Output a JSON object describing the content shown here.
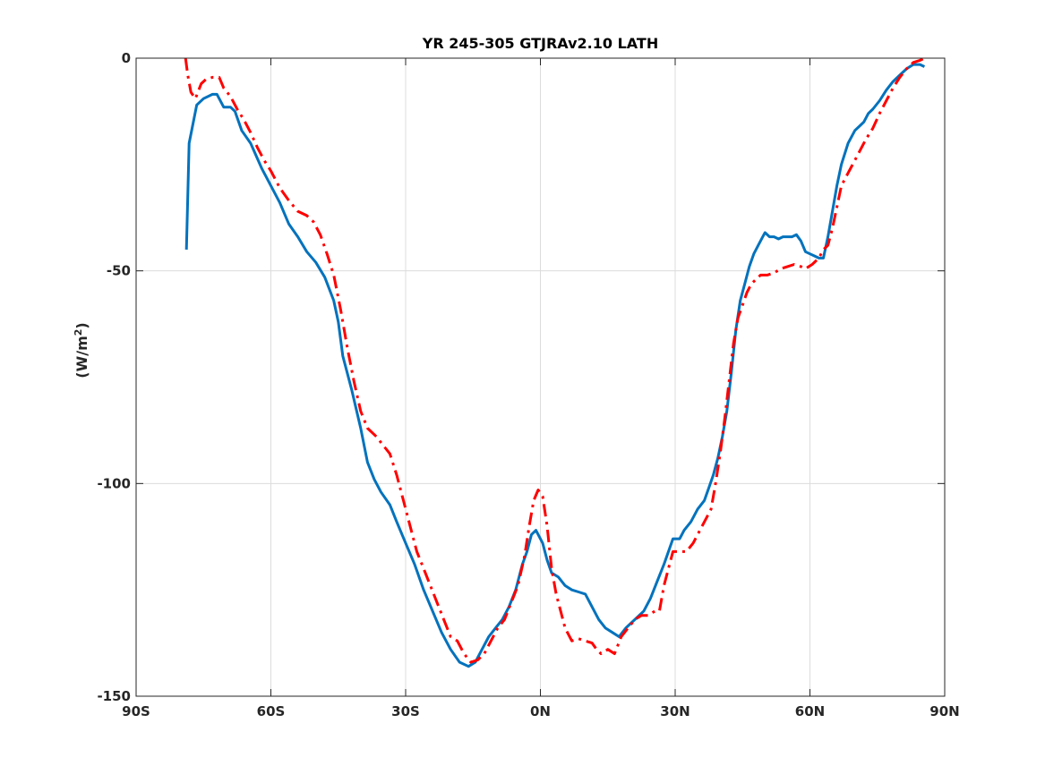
{
  "chart_data": {
    "type": "line",
    "title": "YR 245-305 GTJRAv2.10 LATH",
    "xlabel": "",
    "ylabel": "(W/m",
    "ylabel_sup": "2",
    "ylabel_suffix": ")",
    "xlim": [
      -90,
      90
    ],
    "ylim": [
      -150,
      0
    ],
    "x_ticks": [
      -90,
      -60,
      -30,
      0,
      30,
      60,
      90
    ],
    "x_tick_labels": [
      "90S",
      "60S",
      "30S",
      "0N",
      "30N",
      "60N",
      "90N"
    ],
    "y_ticks": [
      0,
      -50,
      -100,
      -150
    ],
    "y_tick_labels": [
      "0",
      "-50",
      "-100",
      "-150"
    ],
    "grid": true,
    "series": [
      {
        "color": "#0072BD",
        "style": "solid",
        "points": [
          [
            -78.8,
            -45
          ],
          [
            -78.2,
            -20
          ],
          [
            -76.5,
            -11
          ],
          [
            -75,
            -9.5
          ],
          [
            -73,
            -8.5
          ],
          [
            -72,
            -8.5
          ],
          [
            -70.5,
            -11.5
          ],
          [
            -69,
            -11.5
          ],
          [
            -68,
            -12.5
          ],
          [
            -66.5,
            -17
          ],
          [
            -64.5,
            -20
          ],
          [
            -62,
            -26
          ],
          [
            -60,
            -30
          ],
          [
            -58,
            -34
          ],
          [
            -56,
            -39
          ],
          [
            -54,
            -42
          ],
          [
            -52,
            -45.5
          ],
          [
            -50,
            -48
          ],
          [
            -48,
            -51.5
          ],
          [
            -46,
            -57
          ],
          [
            -45,
            -62
          ],
          [
            -44,
            -70
          ],
          [
            -42,
            -78
          ],
          [
            -40,
            -87
          ],
          [
            -38.5,
            -95
          ],
          [
            -37,
            -99
          ],
          [
            -35.5,
            -102
          ],
          [
            -33.5,
            -105
          ],
          [
            -32,
            -109
          ],
          [
            -30,
            -114
          ],
          [
            -28,
            -119
          ],
          [
            -26,
            -125
          ],
          [
            -24,
            -130
          ],
          [
            -22,
            -135
          ],
          [
            -20,
            -139
          ],
          [
            -18,
            -142
          ],
          [
            -16,
            -143
          ],
          [
            -14.5,
            -142
          ],
          [
            -13,
            -139
          ],
          [
            -11.5,
            -136
          ],
          [
            -10,
            -134
          ],
          [
            -8.5,
            -132
          ],
          [
            -7,
            -129
          ],
          [
            -5.5,
            -125
          ],
          [
            -4,
            -119
          ],
          [
            -3,
            -116
          ],
          [
            -2,
            -112
          ],
          [
            -1,
            -111
          ],
          [
            0.5,
            -114
          ],
          [
            1.5,
            -118
          ],
          [
            2.5,
            -121
          ],
          [
            4,
            -122
          ],
          [
            5.5,
            -124
          ],
          [
            7,
            -125
          ],
          [
            8.5,
            -125.5
          ],
          [
            10,
            -126
          ],
          [
            11.5,
            -129
          ],
          [
            13,
            -132
          ],
          [
            14.5,
            -134
          ],
          [
            16,
            -135
          ],
          [
            17.5,
            -136
          ],
          [
            19,
            -134
          ],
          [
            21,
            -132
          ],
          [
            23,
            -130
          ],
          [
            24.5,
            -127
          ],
          [
            26,
            -123
          ],
          [
            27.5,
            -119
          ],
          [
            28.5,
            -116
          ],
          [
            29.5,
            -113
          ],
          [
            31,
            -113
          ],
          [
            32,
            -111
          ],
          [
            33.5,
            -109
          ],
          [
            35,
            -106
          ],
          [
            36.5,
            -104
          ],
          [
            37.5,
            -101
          ],
          [
            38.5,
            -98
          ],
          [
            39.5,
            -94
          ],
          [
            40.5,
            -89
          ],
          [
            41.5,
            -83
          ],
          [
            42.5,
            -74
          ],
          [
            43.5,
            -64
          ],
          [
            44.5,
            -57
          ],
          [
            45.5,
            -53
          ],
          [
            46.5,
            -49
          ],
          [
            47.5,
            -46
          ],
          [
            48.5,
            -44
          ],
          [
            49.5,
            -42
          ],
          [
            50,
            -41
          ],
          [
            51,
            -42
          ],
          [
            52,
            -42
          ],
          [
            53,
            -42.5
          ],
          [
            54,
            -42
          ],
          [
            55,
            -42
          ],
          [
            56,
            -42
          ],
          [
            57,
            -41.5
          ],
          [
            58,
            -43
          ],
          [
            59,
            -45.5
          ],
          [
            60,
            -46
          ],
          [
            61,
            -46.5
          ],
          [
            62,
            -47
          ],
          [
            63,
            -47
          ],
          [
            64,
            -42
          ],
          [
            65,
            -36
          ],
          [
            66,
            -30
          ],
          [
            67,
            -25
          ],
          [
            68.5,
            -20
          ],
          [
            70,
            -17
          ],
          [
            71,
            -16
          ],
          [
            72,
            -15
          ],
          [
            73,
            -13
          ],
          [
            74,
            -12
          ],
          [
            75.5,
            -10
          ],
          [
            77,
            -7.5
          ],
          [
            78.5,
            -5.5
          ],
          [
            80,
            -4
          ],
          [
            81.5,
            -2.5
          ],
          [
            83,
            -1.5
          ],
          [
            84.5,
            -1.5
          ],
          [
            85.5,
            -2
          ]
        ]
      },
      {
        "color": "#FF0000",
        "style": "dashdot",
        "points": [
          [
            -79,
            0
          ],
          [
            -78.5,
            -4
          ],
          [
            -77.8,
            -8
          ],
          [
            -76.8,
            -9.5
          ],
          [
            -75.5,
            -6
          ],
          [
            -74.5,
            -5
          ],
          [
            -73,
            -4.5
          ],
          [
            -71.5,
            -4.5
          ],
          [
            -70.5,
            -7
          ],
          [
            -69,
            -9
          ],
          [
            -67.5,
            -12
          ],
          [
            -66,
            -14.5
          ],
          [
            -64.5,
            -17.5
          ],
          [
            -63,
            -21
          ],
          [
            -61.5,
            -24
          ],
          [
            -60,
            -26.5
          ],
          [
            -58,
            -30.5
          ],
          [
            -56,
            -33.5
          ],
          [
            -54,
            -36
          ],
          [
            -52,
            -37
          ],
          [
            -50.5,
            -38.5
          ],
          [
            -49,
            -41.5
          ],
          [
            -47.5,
            -46
          ],
          [
            -46,
            -51
          ],
          [
            -44.5,
            -59
          ],
          [
            -43,
            -68
          ],
          [
            -41.5,
            -76
          ],
          [
            -40,
            -83
          ],
          [
            -38.5,
            -87
          ],
          [
            -36.5,
            -89
          ],
          [
            -35,
            -91
          ],
          [
            -33.5,
            -93
          ],
          [
            -32,
            -98
          ],
          [
            -30.5,
            -104
          ],
          [
            -29,
            -110
          ],
          [
            -27.5,
            -116
          ],
          [
            -26,
            -120
          ],
          [
            -24.5,
            -124
          ],
          [
            -23,
            -128
          ],
          [
            -21.5,
            -132
          ],
          [
            -20,
            -136
          ],
          [
            -18.5,
            -137
          ],
          [
            -17,
            -140
          ],
          [
            -15.5,
            -142
          ],
          [
            -14,
            -141.5
          ],
          [
            -12.5,
            -140
          ],
          [
            -11,
            -137
          ],
          [
            -9.5,
            -134
          ],
          [
            -8,
            -132
          ],
          [
            -6.5,
            -128
          ],
          [
            -5,
            -124
          ],
          [
            -3.5,
            -117
          ],
          [
            -2.5,
            -110
          ],
          [
            -1.5,
            -104
          ],
          [
            -0.5,
            -101.5
          ],
          [
            0.5,
            -103
          ],
          [
            1.5,
            -110
          ],
          [
            2.5,
            -120
          ],
          [
            3.5,
            -126
          ],
          [
            4.5,
            -130
          ],
          [
            5.5,
            -134
          ],
          [
            7,
            -137
          ],
          [
            8.5,
            -136.5
          ],
          [
            10,
            -137
          ],
          [
            11.5,
            -137.5
          ],
          [
            12.5,
            -139
          ],
          [
            13.5,
            -140
          ],
          [
            15,
            -139
          ],
          [
            16.5,
            -140
          ],
          [
            18,
            -136
          ],
          [
            19.5,
            -134
          ],
          [
            21,
            -132
          ],
          [
            22.5,
            -131
          ],
          [
            24,
            -131
          ],
          [
            25.5,
            -130
          ],
          [
            26.5,
            -130
          ],
          [
            27.5,
            -124
          ],
          [
            28.5,
            -120
          ],
          [
            29.5,
            -116
          ],
          [
            30.5,
            -116
          ],
          [
            31.5,
            -116
          ],
          [
            32.5,
            -116
          ],
          [
            34,
            -114
          ],
          [
            35.5,
            -111
          ],
          [
            37,
            -108
          ],
          [
            38,
            -106
          ],
          [
            39,
            -100
          ],
          [
            40,
            -93
          ],
          [
            41,
            -85
          ],
          [
            42,
            -76
          ],
          [
            43,
            -67
          ],
          [
            44,
            -61
          ],
          [
            45,
            -58
          ],
          [
            46,
            -55
          ],
          [
            47,
            -53
          ],
          [
            48,
            -52
          ],
          [
            49,
            -51
          ],
          [
            50.5,
            -51
          ],
          [
            52,
            -50.5
          ],
          [
            53.5,
            -49.5
          ],
          [
            55,
            -49
          ],
          [
            56.5,
            -48.5
          ],
          [
            58,
            -49
          ],
          [
            59,
            -49.5
          ],
          [
            60.5,
            -48.5
          ],
          [
            62,
            -47
          ],
          [
            63,
            -45
          ],
          [
            64,
            -44
          ],
          [
            65,
            -40
          ],
          [
            66,
            -35
          ],
          [
            67,
            -30
          ],
          [
            68.5,
            -27
          ],
          [
            70,
            -24
          ],
          [
            71,
            -22
          ],
          [
            72.5,
            -19
          ],
          [
            74,
            -16.5
          ],
          [
            75.5,
            -13
          ],
          [
            77,
            -10
          ],
          [
            78.5,
            -7
          ],
          [
            80,
            -4.5
          ],
          [
            81.5,
            -2.5
          ],
          [
            83,
            -1
          ],
          [
            84.5,
            -0.5
          ],
          [
            85.5,
            0
          ]
        ]
      }
    ]
  }
}
